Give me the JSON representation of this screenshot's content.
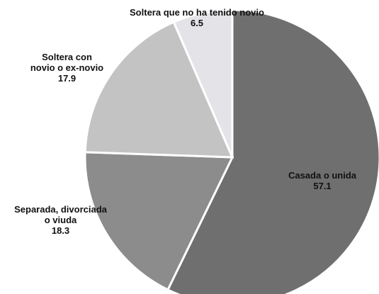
{
  "chart_data": {
    "type": "pie",
    "categories": [
      "Casada o unida",
      "Separada, divorciada o viuda",
      "Soltera con novio o ex-novio",
      "Soltera que no ha tenido novio"
    ],
    "values": [
      57.1,
      18.3,
      17.9,
      6.5
    ],
    "colors": [
      "#6f6f6f",
      "#8c8c8c",
      "#c3c3c3",
      "#e4e4e8"
    ]
  }
}
